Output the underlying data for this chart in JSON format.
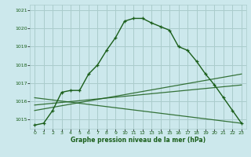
{
  "title": "Graphe pression niveau de la mer (hPa)",
  "bg_color": "#cce8ec",
  "grid_color": "#aacccc",
  "line_color": "#1a5e1a",
  "xlim": [
    -0.5,
    23.5
  ],
  "ylim": [
    1014.5,
    1021.3
  ],
  "yticks": [
    1015,
    1016,
    1017,
    1018,
    1019,
    1020,
    1021
  ],
  "xticks": [
    0,
    1,
    2,
    3,
    4,
    5,
    6,
    7,
    8,
    9,
    10,
    11,
    12,
    13,
    14,
    15,
    16,
    17,
    18,
    19,
    20,
    21,
    22,
    23
  ],
  "hours": [
    0,
    1,
    2,
    3,
    4,
    5,
    6,
    7,
    8,
    9,
    10,
    11,
    12,
    13,
    14,
    15,
    16,
    17,
    18,
    19,
    20,
    21,
    22,
    23
  ],
  "main_curve": [
    1014.7,
    1014.8,
    1015.5,
    1016.5,
    1016.6,
    1016.6,
    1017.5,
    1018.0,
    1018.8,
    1019.5,
    1020.4,
    1020.55,
    1020.55,
    1020.3,
    1020.1,
    1019.9,
    1019.0,
    1018.8,
    1018.2,
    1017.5,
    1016.9,
    1016.2,
    1015.5,
    1014.8
  ],
  "line2_x": [
    0,
    23
  ],
  "line2_y": [
    1015.5,
    1017.5
  ],
  "line3_x": [
    0,
    23
  ],
  "line3_y": [
    1015.8,
    1016.9
  ],
  "line4_x": [
    0,
    23
  ],
  "line4_y": [
    1016.2,
    1014.8
  ]
}
